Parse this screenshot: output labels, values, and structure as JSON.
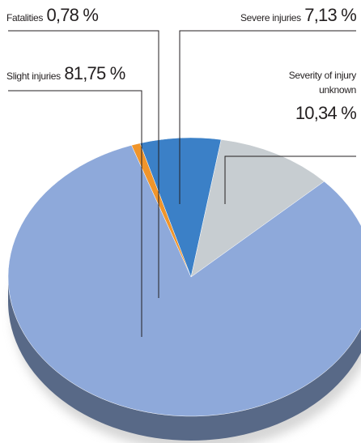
{
  "chart_data": {
    "type": "pie3d",
    "categories": [
      "Fatalities",
      "Severe injuries",
      "Severity of injury unknown",
      "Slight injuries"
    ],
    "values": [
      0.78,
      7.13,
      10.34,
      81.75
    ],
    "value_labels": [
      "0,78 %",
      "7,13 %",
      "10,34 %",
      "81,75 %"
    ],
    "colors": [
      "#f0952b",
      "#3b80c7",
      "#c7cdd1",
      "#8ea9da"
    ]
  }
}
